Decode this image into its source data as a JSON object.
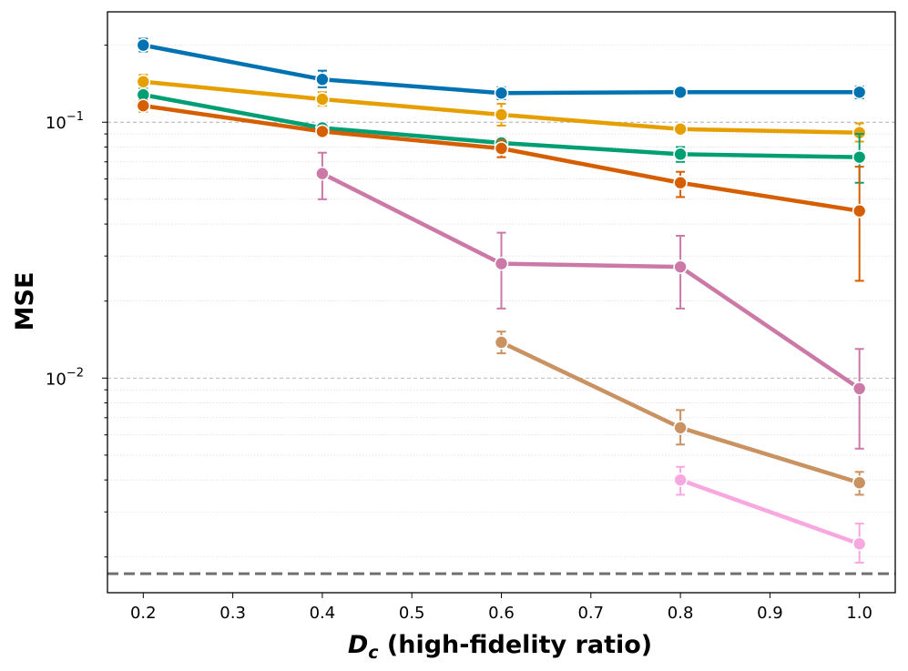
{
  "chart_data": {
    "type": "line",
    "title": "",
    "xlabel": {
      "symbol": "D",
      "subscript": "c",
      "rest": " (high-fidelity ratio)"
    },
    "ylabel": "MSE",
    "yscale": "log",
    "xlim": [
      0.16,
      1.04
    ],
    "ylim": [
      0.00145,
      0.27
    ],
    "xticks": [
      {
        "value": 0.2,
        "label": "0.2"
      },
      {
        "value": 0.3,
        "label": "0.3"
      },
      {
        "value": 0.4,
        "label": "0.4"
      },
      {
        "value": 0.5,
        "label": "0.5"
      },
      {
        "value": 0.6,
        "label": "0.6"
      },
      {
        "value": 0.7,
        "label": "0.7"
      },
      {
        "value": 0.8,
        "label": "0.8"
      },
      {
        "value": 0.9,
        "label": "0.9"
      },
      {
        "value": 1.0,
        "label": "1.0"
      }
    ],
    "yticks": [
      {
        "value": 0.1,
        "base": "10",
        "exp": "−1"
      },
      {
        "value": 0.01,
        "base": "10",
        "exp": "−2"
      }
    ],
    "grid": true,
    "reference_line": {
      "y": 0.00172,
      "style": "dashed",
      "color": "#707070"
    },
    "series": [
      {
        "color": "#0072B2",
        "x": [
          0.2,
          0.4,
          0.6,
          0.8,
          1.0
        ],
        "y": [
          0.2,
          0.147,
          0.13,
          0.131,
          0.131
        ],
        "err_low": [
          0.189,
          0.137,
          0.123,
          0.127,
          0.124
        ],
        "err_high": [
          0.212,
          0.159,
          0.137,
          0.135,
          0.138
        ]
      },
      {
        "color": "#E69F00",
        "x": [
          0.2,
          0.4,
          0.6,
          0.8,
          1.0
        ],
        "y": [
          0.144,
          0.123,
          0.107,
          0.094,
          0.091
        ],
        "err_low": [
          0.136,
          0.116,
          0.097,
          0.091,
          0.084
        ],
        "err_high": [
          0.153,
          0.131,
          0.118,
          0.097,
          0.099
        ]
      },
      {
        "color": "#009E73",
        "x": [
          0.2,
          0.4,
          0.6,
          0.8,
          1.0
        ],
        "y": [
          0.128,
          0.095,
          0.083,
          0.075,
          0.073
        ],
        "err_low": [
          0.121,
          0.091,
          0.079,
          0.07,
          0.058
        ],
        "err_high": [
          0.135,
          0.099,
          0.087,
          0.08,
          0.09
        ]
      },
      {
        "color": "#D55E00",
        "x": [
          0.2,
          0.4,
          0.6,
          0.8,
          1.0
        ],
        "y": [
          0.116,
          0.092,
          0.079,
          0.058,
          0.045
        ],
        "err_low": [
          0.11,
          0.088,
          0.073,
          0.051,
          0.024
        ],
        "err_high": [
          0.122,
          0.096,
          0.085,
          0.064,
          0.067
        ]
      },
      {
        "color": "#CC79A7",
        "x": [
          0.4,
          0.6,
          0.8,
          1.0
        ],
        "y": [
          0.063,
          0.028,
          0.0272,
          0.0091
        ],
        "err_low": [
          0.05,
          0.0187,
          0.0187,
          0.0053
        ],
        "err_high": [
          0.076,
          0.037,
          0.036,
          0.013
        ]
      },
      {
        "color": "#CA9161",
        "x": [
          0.6,
          0.8,
          1.0
        ],
        "y": [
          0.0138,
          0.0064,
          0.0039
        ],
        "err_low": [
          0.0125,
          0.0055,
          0.0035
        ],
        "err_high": [
          0.0152,
          0.0075,
          0.0043
        ]
      },
      {
        "color": "#F8A8E0",
        "x": [
          0.8,
          1.0
        ],
        "y": [
          0.004,
          0.00225
        ],
        "err_low": [
          0.0035,
          0.0019
        ],
        "err_high": [
          0.0045,
          0.0027
        ]
      }
    ]
  }
}
